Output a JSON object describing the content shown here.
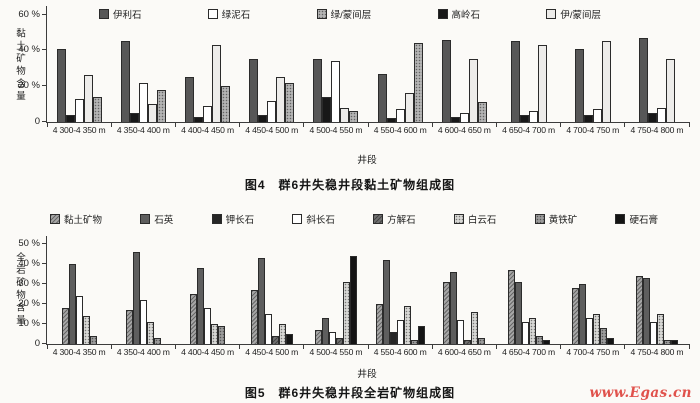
{
  "page": {
    "background": "#fbfaf7",
    "watermark": {
      "text": "www.Egas.cn",
      "color": "#e0524c"
    }
  },
  "chart_data": [
    {
      "type": "bar",
      "title": "图4　群6井失稳井段黏土矿物组成图",
      "ylabel": "黏土矿物含量",
      "xlabel": "井段",
      "ylim": [
        0,
        60
      ],
      "grid": false,
      "legend_position": "top-inside",
      "yticks": [
        {
          "v": 0,
          "label": "0"
        },
        {
          "v": 20,
          "label": "20 %"
        },
        {
          "v": 40,
          "label": "40 %"
        },
        {
          "v": 60,
          "label": "60 %"
        }
      ],
      "categories": [
        "4 300-4 350 m",
        "4 350-4 400 m",
        "4 400-4 450 m",
        "4 450-4 500 m",
        "4 500-4 550 m",
        "4 550-4 600 m",
        "4 600-4 650 m",
        "4 650-4 700 m",
        "4 700-4 750 m",
        "4 750-4 800 m"
      ],
      "legend": [
        "伊利石",
        "绿泥石",
        "绿/蒙间层",
        "高岭石",
        "伊/蒙间层"
      ],
      "series": [
        {
          "name": "伊利石",
          "color": "#575757",
          "pattern": "solid",
          "values": [
            41,
            45,
            25,
            35,
            35,
            27,
            46,
            45,
            41,
            47
          ]
        },
        {
          "name": "高岭石",
          "color": "#181818",
          "pattern": "solid",
          "values": [
            4,
            5,
            3,
            4,
            14,
            2,
            3,
            4,
            4,
            5
          ]
        },
        {
          "name": "绿泥石",
          "color": "#ffffff",
          "pattern": "outline",
          "values": [
            13,
            22,
            9,
            12,
            34,
            7,
            5,
            6,
            7,
            8
          ]
        },
        {
          "name": "伊/蒙间层",
          "color": "#edecea",
          "pattern": "outline",
          "values": [
            26,
            10,
            43,
            25,
            8,
            16,
            35,
            43,
            45,
            35
          ]
        },
        {
          "name": "绿/蒙间层",
          "color": "#b4b4b4",
          "pattern": "dot",
          "values": [
            14,
            18,
            20,
            22,
            6,
            44,
            11,
            0,
            0,
            0
          ]
        }
      ]
    },
    {
      "type": "bar",
      "title": "图5　群6井失稳井段全岩矿物组成图",
      "ylabel": "全岩矿物含量",
      "xlabel": "井段",
      "ylim": [
        0,
        50
      ],
      "grid": false,
      "legend_position": "top",
      "yticks": [
        {
          "v": 0,
          "label": "0"
        },
        {
          "v": 10,
          "label": "10 %"
        },
        {
          "v": 20,
          "label": "20 %"
        },
        {
          "v": 30,
          "label": "30 %"
        },
        {
          "v": 40,
          "label": "40 %"
        },
        {
          "v": 50,
          "label": "50 %"
        }
      ],
      "categories": [
        "4 300-4 350 m",
        "4 350-4 400 m",
        "4 400-4 450 m",
        "4 450-4 500 m",
        "4 500-4 550 m",
        "4 550-4 600 m",
        "4 600-4 650 m",
        "4 650-4 700 m",
        "4 700-4 750 m",
        "4 750-4 800 m"
      ],
      "legend": [
        "黏土矿物",
        "石英",
        "钾长石",
        "斜长石",
        "方解石",
        "白云石",
        "黄铁矿",
        "硬石膏"
      ],
      "series": [
        {
          "name": "黏土矿物",
          "color": "#a6a6a6",
          "pattern": "hatch",
          "values": [
            18,
            17,
            25,
            27,
            7,
            20,
            31,
            37,
            28,
            34
          ]
        },
        {
          "name": "石英",
          "color": "#5e5e5e",
          "pattern": "solid",
          "values": [
            40,
            46,
            38,
            43,
            13,
            42,
            36,
            31,
            30,
            33
          ]
        },
        {
          "name": "钾长石",
          "color": "#262626",
          "pattern": "solid",
          "values": [
            0,
            0,
            0,
            0,
            0,
            6,
            0,
            0,
            0,
            0
          ]
        },
        {
          "name": "斜长石",
          "color": "#ffffff",
          "pattern": "outline",
          "values": [
            24,
            22,
            18,
            15,
            6,
            12,
            12,
            11,
            13,
            11
          ]
        },
        {
          "name": "方解石",
          "color": "#707070",
          "pattern": "hatch",
          "values": [
            0,
            0,
            0,
            4,
            3,
            0,
            2,
            0,
            0,
            0
          ]
        },
        {
          "name": "白云石",
          "color": "#d8d8d5",
          "pattern": "dot",
          "values": [
            14,
            11,
            10,
            10,
            31,
            19,
            16,
            13,
            15,
            15
          ]
        },
        {
          "name": "黄铁矿",
          "color": "#9b9b9b",
          "pattern": "dot",
          "values": [
            4,
            3,
            9,
            0,
            0,
            2,
            3,
            4,
            8,
            2
          ]
        },
        {
          "name": "硬石膏",
          "color": "#141414",
          "pattern": "solid",
          "values": [
            0,
            0,
            0,
            5,
            44,
            9,
            0,
            2,
            3,
            2
          ]
        }
      ]
    }
  ]
}
